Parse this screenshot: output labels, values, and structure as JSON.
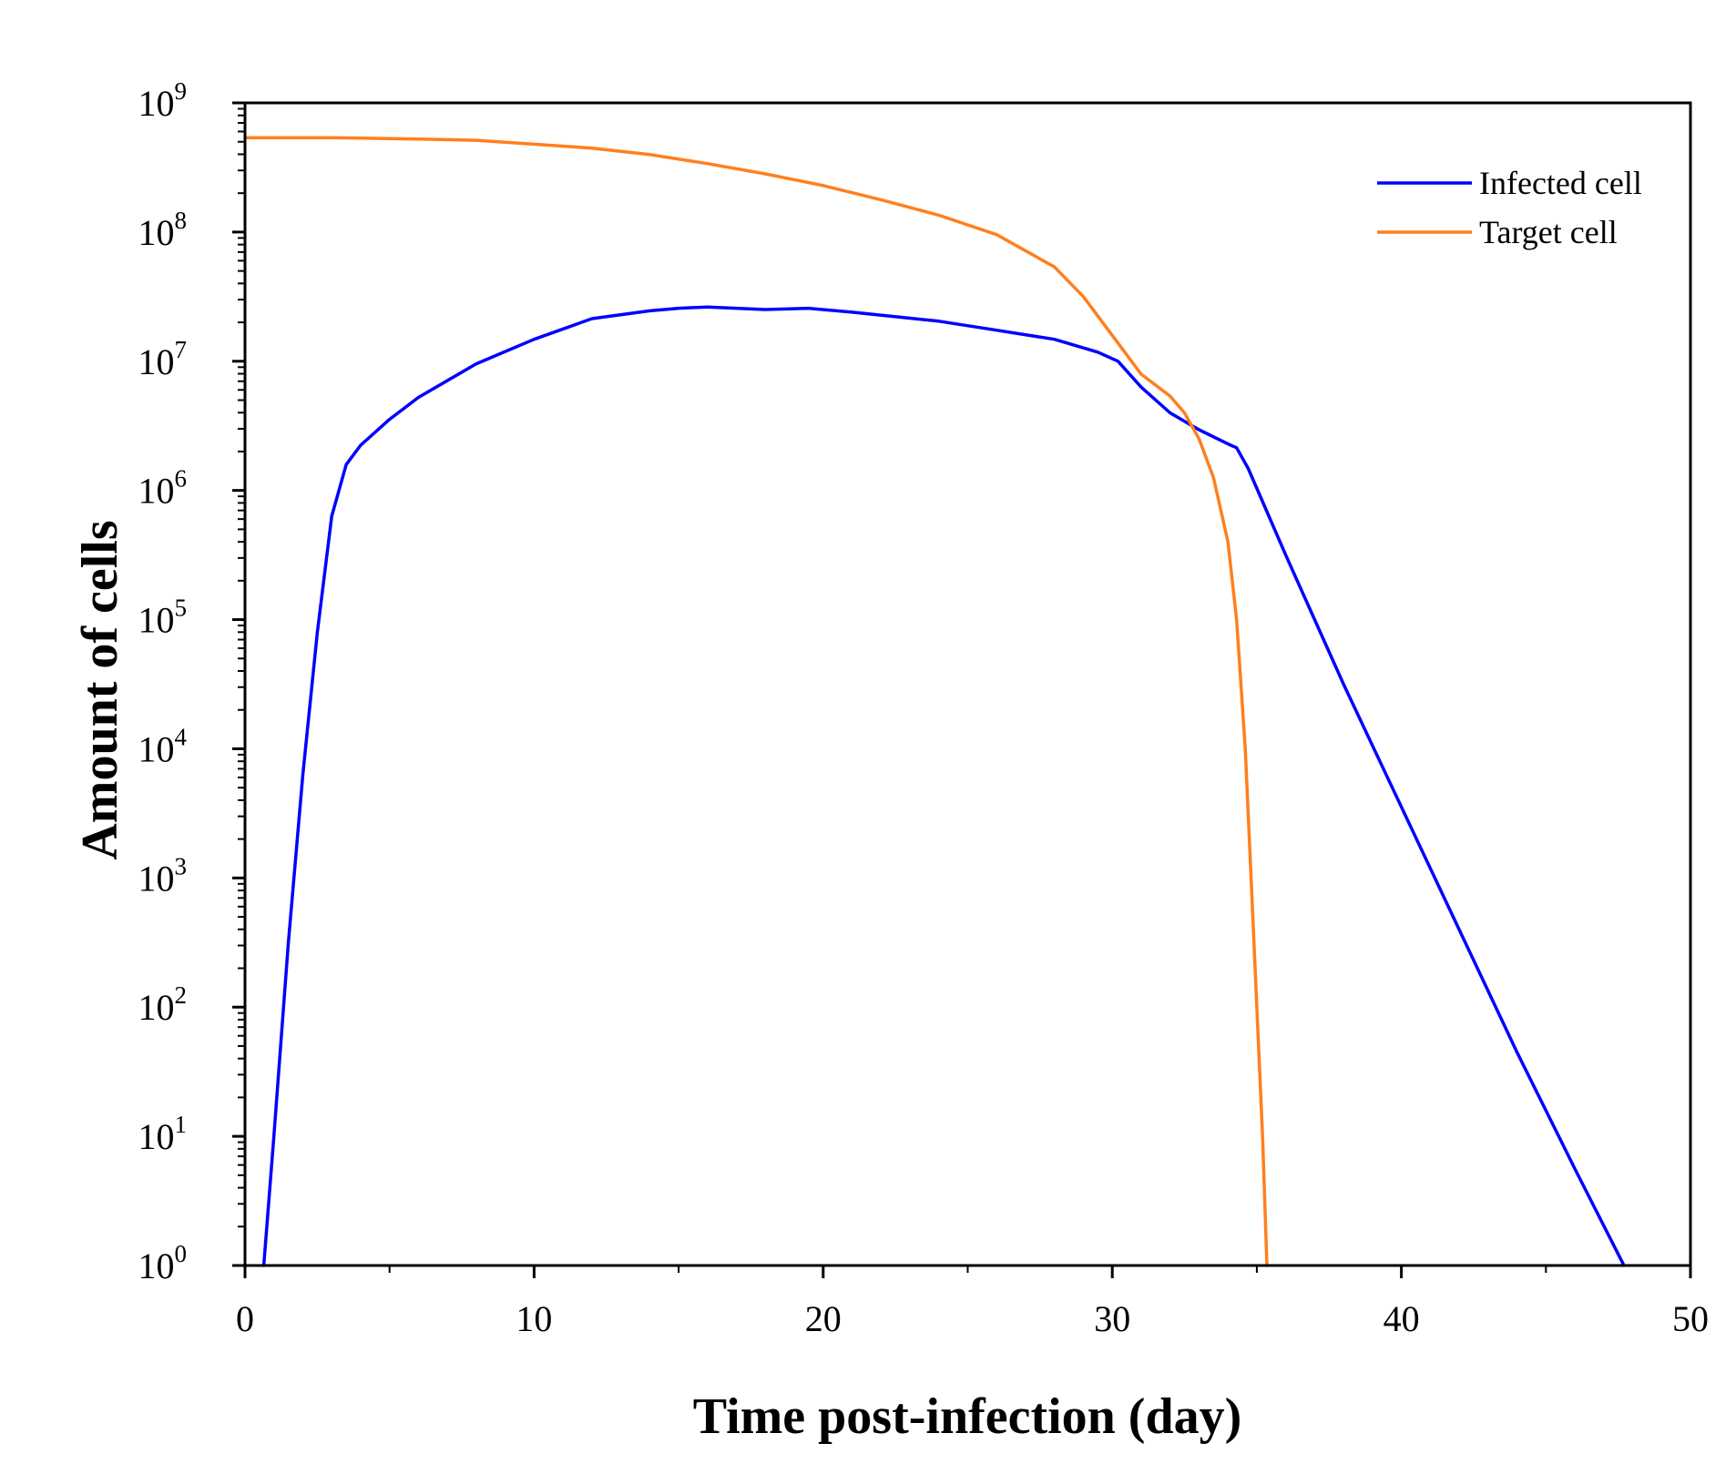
{
  "chart_data": {
    "type": "line",
    "title": "",
    "xlabel": "Time post-infection (day)",
    "ylabel": "Amount of cells",
    "xlim": [
      0,
      50
    ],
    "ylim_log10": [
      0,
      9
    ],
    "yscale": "log",
    "legend_position": "top-right",
    "x_ticks": [
      {
        "value": 0,
        "label": "0"
      },
      {
        "value": 10,
        "label": "10"
      },
      {
        "value": 20,
        "label": "20"
      },
      {
        "value": 30,
        "label": "30"
      },
      {
        "value": 40,
        "label": "40"
      },
      {
        "value": 50,
        "label": "50"
      }
    ],
    "y_ticks": [
      {
        "exp": 0,
        "base": "10",
        "sup": "0"
      },
      {
        "exp": 1,
        "base": "10",
        "sup": "1"
      },
      {
        "exp": 2,
        "base": "10",
        "sup": "2"
      },
      {
        "exp": 3,
        "base": "10",
        "sup": "3"
      },
      {
        "exp": 4,
        "base": "10",
        "sup": "4"
      },
      {
        "exp": 5,
        "base": "10",
        "sup": "5"
      },
      {
        "exp": 6,
        "base": "10",
        "sup": "6"
      },
      {
        "exp": 7,
        "base": "10",
        "sup": "7"
      },
      {
        "exp": 8,
        "base": "10",
        "sup": "8"
      },
      {
        "exp": 9,
        "base": "10",
        "sup": "9"
      }
    ],
    "series": [
      {
        "name": "Infected cell",
        "color": "#0000ff",
        "x": [
          0.65,
          1.0,
          1.5,
          2.0,
          2.5,
          3.0,
          3.5,
          4.0,
          5.0,
          6.0,
          8.0,
          10.0,
          12.0,
          14.0,
          15.0,
          16.0,
          18.0,
          19.5,
          21.0,
          24.0,
          26.0,
          28.0,
          29.5,
          30.2,
          31.0,
          32.0,
          33.0,
          34.0,
          34.3,
          34.7,
          36.0,
          38.0,
          40.0,
          42.0,
          44.0,
          46.0,
          47.7
        ],
        "log10y": [
          0.0,
          1.0,
          2.5,
          3.8,
          4.9,
          5.8,
          6.2,
          6.35,
          6.55,
          6.72,
          6.98,
          7.17,
          7.33,
          7.39,
          7.41,
          7.42,
          7.4,
          7.41,
          7.38,
          7.31,
          7.24,
          7.17,
          7.07,
          7.0,
          6.8,
          6.6,
          6.47,
          6.36,
          6.33,
          6.17,
          5.5,
          4.5,
          3.55,
          2.6,
          1.65,
          0.75,
          0.0
        ]
      },
      {
        "name": "Target cell",
        "color": "#ff7f1f",
        "x": [
          0.0,
          3.0,
          6.0,
          8.0,
          10.0,
          12.0,
          14.0,
          16.0,
          18.0,
          20.0,
          22.0,
          24.0,
          26.0,
          28.0,
          29.0,
          30.0,
          31.0,
          32.0,
          32.5,
          33.0,
          33.5,
          34.0,
          34.3,
          34.6,
          34.8,
          35.0,
          35.2,
          35.35
        ],
        "log10y": [
          8.73,
          8.73,
          8.72,
          8.71,
          8.68,
          8.65,
          8.6,
          8.53,
          8.45,
          8.36,
          8.25,
          8.13,
          7.98,
          7.73,
          7.5,
          7.2,
          6.9,
          6.73,
          6.6,
          6.4,
          6.1,
          5.6,
          5.0,
          4.0,
          3.0,
          2.0,
          1.0,
          0.0
        ]
      }
    ]
  }
}
